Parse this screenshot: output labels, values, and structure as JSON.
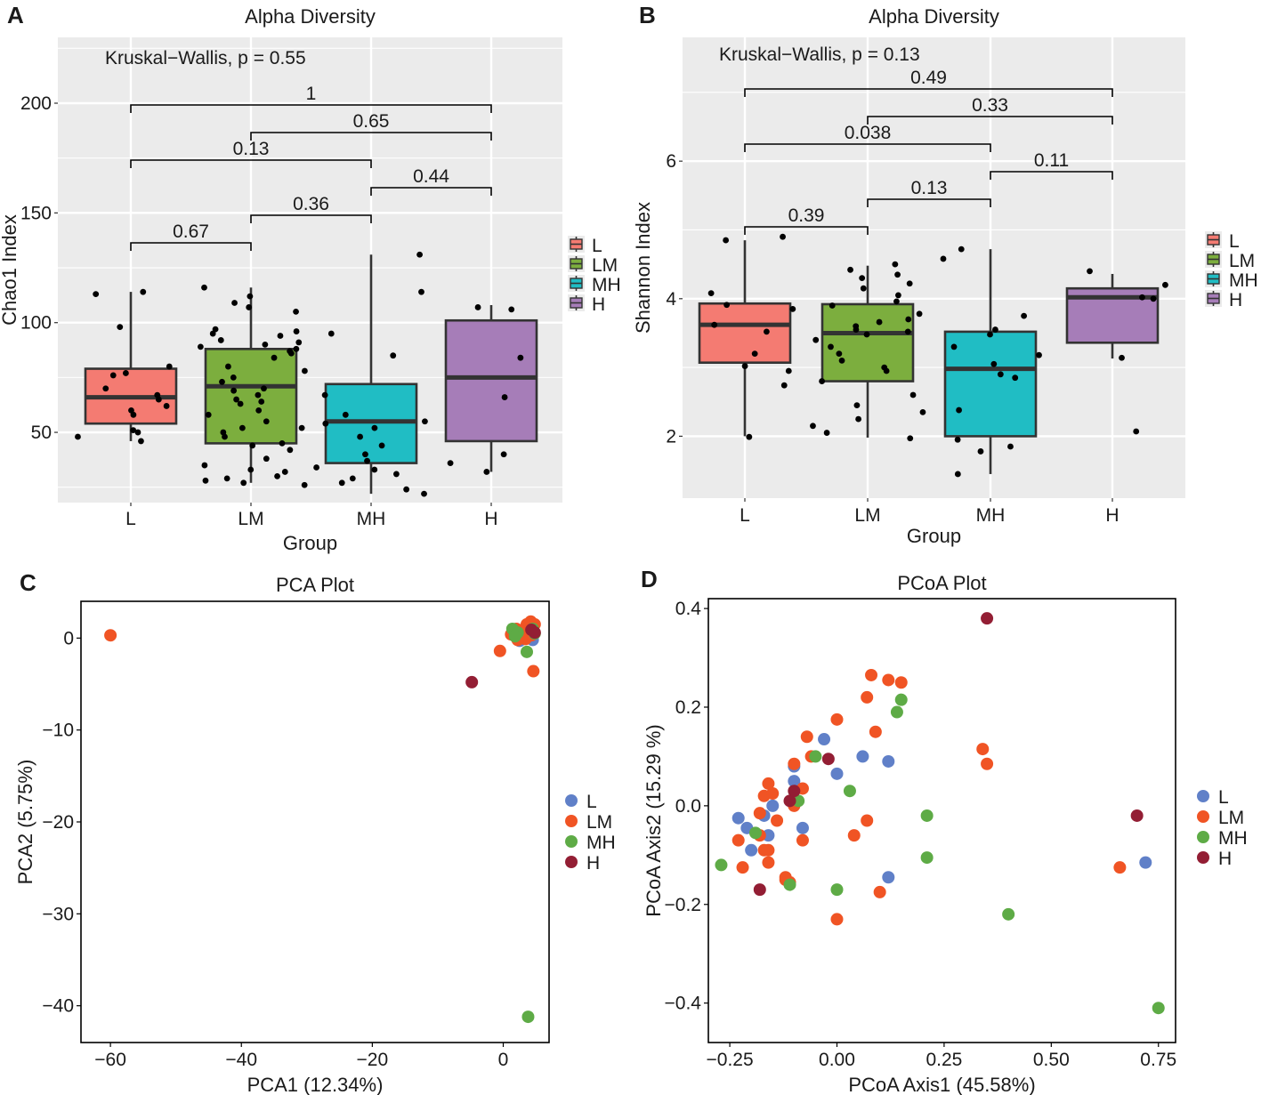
{
  "chart_data": [
    {
      "id": "A",
      "type": "box",
      "title": "Alpha Diversity",
      "xlabel": "Group",
      "ylabel": "Chao1 Index",
      "annotation": "Kruskal−Wallis, p = 0.55",
      "categories": [
        "L",
        "LM",
        "MH",
        "H"
      ],
      "ylim": [
        18,
        230
      ],
      "yticks": [
        50,
        100,
        150,
        200
      ],
      "colors": [
        "#F47B72",
        "#7CAE3E",
        "#20BDC4",
        "#A67DB8"
      ],
      "boxes": [
        {
          "group": "L",
          "whislo": 46,
          "q1": 54,
          "med": 66,
          "q3": 79,
          "whishi": 114
        },
        {
          "group": "LM",
          "whislo": 27,
          "q1": 45,
          "med": 71,
          "q3": 88,
          "whishi": 116
        },
        {
          "group": "MH",
          "whislo": 22,
          "q1": 36,
          "med": 55,
          "q3": 72,
          "whishi": 131
        },
        {
          "group": "H",
          "whislo": 32,
          "q1": 46,
          "med": 75,
          "q3": 101,
          "whishi": 108
        }
      ],
      "points": [
        [
          0,
          113
        ],
        [
          0,
          67
        ],
        [
          0,
          50
        ],
        [
          0,
          77
        ],
        [
          0,
          70
        ],
        [
          0,
          62
        ],
        [
          0,
          65
        ],
        [
          0,
          60
        ],
        [
          0,
          58
        ],
        [
          0,
          51
        ],
        [
          0,
          48
        ],
        [
          0,
          46
        ],
        [
          0,
          114
        ],
        [
          0,
          98
        ],
        [
          0,
          80
        ],
        [
          0,
          76
        ],
        [
          1,
          52
        ],
        [
          1,
          73
        ],
        [
          1,
          78
        ],
        [
          1,
          84
        ],
        [
          1,
          86
        ],
        [
          1,
          87
        ],
        [
          1,
          89
        ],
        [
          1,
          90
        ],
        [
          1,
          91
        ],
        [
          1,
          92
        ],
        [
          1,
          94
        ],
        [
          1,
          95
        ],
        [
          1,
          96
        ],
        [
          1,
          97
        ],
        [
          1,
          69
        ],
        [
          1,
          67
        ],
        [
          1,
          65
        ],
        [
          1,
          63
        ],
        [
          1,
          60
        ],
        [
          1,
          58
        ],
        [
          1,
          55
        ],
        [
          1,
          52
        ],
        [
          1,
          50
        ],
        [
          1,
          48
        ],
        [
          1,
          45
        ],
        [
          1,
          42
        ],
        [
          1,
          38
        ],
        [
          1,
          35
        ],
        [
          1,
          33
        ],
        [
          1,
          32
        ],
        [
          1,
          30
        ],
        [
          1,
          28
        ],
        [
          1,
          27
        ],
        [
          1,
          26
        ],
        [
          1,
          105
        ],
        [
          1,
          107
        ],
        [
          1,
          109
        ],
        [
          1,
          112
        ],
        [
          1,
          116
        ],
        [
          1,
          88
        ],
        [
          1,
          80
        ],
        [
          1,
          75
        ],
        [
          1,
          70
        ],
        [
          1,
          64
        ],
        [
          1,
          44
        ],
        [
          1,
          29
        ],
        [
          2,
          131
        ],
        [
          2,
          114
        ],
        [
          2,
          95
        ],
        [
          2,
          85
        ],
        [
          2,
          67
        ],
        [
          2,
          55
        ],
        [
          2,
          52
        ],
        [
          2,
          48
        ],
        [
          2,
          44
        ],
        [
          2,
          40
        ],
        [
          2,
          37
        ],
        [
          2,
          34
        ],
        [
          2,
          31
        ],
        [
          2,
          29
        ],
        [
          2,
          27
        ],
        [
          2,
          24
        ],
        [
          2,
          22
        ],
        [
          2,
          58
        ],
        [
          2,
          54
        ],
        [
          2,
          33
        ],
        [
          3,
          107
        ],
        [
          3,
          106
        ],
        [
          3,
          84
        ],
        [
          3,
          66
        ],
        [
          3,
          40
        ],
        [
          3,
          36
        ],
        [
          3,
          32
        ]
      ],
      "brackets": [
        {
          "from": "L",
          "to": "H",
          "label": "1"
        },
        {
          "from": "LM",
          "to": "H",
          "label": "0.65"
        },
        {
          "from": "L",
          "to": "MH",
          "label": "0.13"
        },
        {
          "from": "MH",
          "to": "H",
          "label": "0.44"
        },
        {
          "from": "LM",
          "to": "MH",
          "label": "0.36"
        },
        {
          "from": "L",
          "to": "LM",
          "label": "0.67"
        }
      ],
      "legend": [
        "L",
        "LM",
        "MH",
        "H"
      ]
    },
    {
      "id": "B",
      "type": "box",
      "title": "Alpha Diversity",
      "xlabel": "Group",
      "ylabel": "Shannon Index",
      "annotation": "Kruskal−Wallis, p = 0.13",
      "categories": [
        "L",
        "LM",
        "MH",
        "H"
      ],
      "ylim": [
        1.1,
        7.8
      ],
      "yticks": [
        2,
        4,
        6
      ],
      "colors": [
        "#F47B72",
        "#7CAE3E",
        "#20BDC4",
        "#A67DB8"
      ],
      "boxes": [
        {
          "group": "L",
          "whislo": 2.0,
          "q1": 3.07,
          "med": 3.62,
          "q3": 3.93,
          "whishi": 4.85
        },
        {
          "group": "LM",
          "whislo": 1.98,
          "q1": 2.8,
          "med": 3.5,
          "q3": 3.92,
          "whishi": 4.48
        },
        {
          "group": "MH",
          "whislo": 1.45,
          "q1": 2.0,
          "med": 2.98,
          "q3": 3.52,
          "whishi": 4.72
        },
        {
          "group": "H",
          "whislo": 3.13,
          "q1": 3.36,
          "med": 4.02,
          "q3": 4.15,
          "whishi": 4.36
        }
      ],
      "points": [
        [
          0,
          4.85
        ],
        [
          0,
          4.9
        ],
        [
          0,
          4.08
        ],
        [
          0,
          3.91
        ],
        [
          0,
          3.85
        ],
        [
          0,
          3.62
        ],
        [
          0,
          3.52
        ],
        [
          0,
          3.2
        ],
        [
          0,
          3.02
        ],
        [
          0,
          2.95
        ],
        [
          0,
          2.74
        ],
        [
          0,
          1.99
        ],
        [
          1,
          4.5
        ],
        [
          1,
          4.42
        ],
        [
          1,
          4.35
        ],
        [
          1,
          4.3
        ],
        [
          1,
          4.22
        ],
        [
          1,
          4.15
        ],
        [
          1,
          4.05
        ],
        [
          1,
          3.96
        ],
        [
          1,
          3.9
        ],
        [
          1,
          3.78
        ],
        [
          1,
          3.7
        ],
        [
          1,
          3.66
        ],
        [
          1,
          3.6
        ],
        [
          1,
          3.55
        ],
        [
          1,
          3.52
        ],
        [
          1,
          3.48
        ],
        [
          1,
          3.4
        ],
        [
          1,
          3.3
        ],
        [
          1,
          3.1
        ],
        [
          1,
          2.95
        ],
        [
          1,
          2.8
        ],
        [
          1,
          2.6
        ],
        [
          1,
          2.45
        ],
        [
          1,
          2.35
        ],
        [
          1,
          2.25
        ],
        [
          1,
          2.15
        ],
        [
          1,
          2.05
        ],
        [
          1,
          1.97
        ],
        [
          1,
          3.0
        ],
        [
          1,
          3.2
        ],
        [
          2,
          4.72
        ],
        [
          2,
          4.58
        ],
        [
          2,
          3.75
        ],
        [
          2,
          3.55
        ],
        [
          2,
          3.48
        ],
        [
          2,
          3.3
        ],
        [
          2,
          3.18
        ],
        [
          2,
          3.05
        ],
        [
          2,
          2.9
        ],
        [
          2,
          2.85
        ],
        [
          2,
          2.38
        ],
        [
          2,
          1.95
        ],
        [
          2,
          1.85
        ],
        [
          2,
          1.78
        ],
        [
          2,
          1.45
        ],
        [
          3,
          4.4
        ],
        [
          3,
          4.2
        ],
        [
          3,
          4.02
        ],
        [
          3,
          4.0
        ],
        [
          3,
          3.14
        ],
        [
          3,
          2.07
        ]
      ],
      "brackets": [
        {
          "from": "L",
          "to": "H",
          "label": "0.49"
        },
        {
          "from": "LM",
          "to": "H",
          "label": "0.33"
        },
        {
          "from": "L",
          "to": "MH",
          "label": "0.038"
        },
        {
          "from": "MH",
          "to": "H",
          "label": "0.11"
        },
        {
          "from": "LM",
          "to": "MH",
          "label": "0.13"
        },
        {
          "from": "L",
          "to": "LM",
          "label": "0.39"
        }
      ],
      "legend": [
        "L",
        "LM",
        "MH",
        "H"
      ]
    },
    {
      "id": "C",
      "type": "scatter",
      "title": "PCA Plot",
      "xlabel": "PCA1 (12.34%)",
      "ylabel": "PCA2 (5.75%)",
      "xlim": [
        -64.5,
        7
      ],
      "ylim": [
        -44,
        4
      ],
      "xticks": [
        -60,
        -40,
        -20,
        0
      ],
      "yticks": [
        0,
        -10,
        -20,
        -30,
        -40
      ],
      "legend": [
        {
          "label": "L",
          "color": "#6080C8"
        },
        {
          "label": "LM",
          "color": "#F05424"
        },
        {
          "label": "MH",
          "color": "#5EAB46"
        },
        {
          "label": "H",
          "color": "#931E34"
        }
      ],
      "series": [
        {
          "name": "L",
          "points": [
            [
              2.5,
              -0.3
            ],
            [
              3.3,
              1.0
            ],
            [
              4.0,
              1.2
            ],
            [
              3.8,
              0.5
            ],
            [
              2.9,
              0.0
            ],
            [
              4.5,
              -0.2
            ]
          ]
        },
        {
          "name": "LM",
          "points": [
            [
              -60,
              0.3
            ],
            [
              -0.5,
              -1.4
            ],
            [
              1.2,
              0.4
            ],
            [
              2.0,
              1.0
            ],
            [
              3.0,
              0.8
            ],
            [
              3.6,
              1.5
            ],
            [
              4.2,
              1.8
            ],
            [
              4.8,
              1.5
            ],
            [
              3.4,
              -0.1
            ],
            [
              2.2,
              -0.2
            ],
            [
              4.3,
              0.3
            ],
            [
              3.0,
              0.4
            ],
            [
              2.6,
              0.8
            ],
            [
              4.6,
              -3.6
            ]
          ]
        },
        {
          "name": "MH",
          "points": [
            [
              1.4,
              1.0
            ],
            [
              2.2,
              0.6
            ],
            [
              3.6,
              -1.5
            ],
            [
              4.5,
              1.0
            ],
            [
              4.8,
              0.5
            ],
            [
              3.8,
              -41.2
            ],
            [
              1.8,
              0.2
            ]
          ]
        },
        {
          "name": "H",
          "points": [
            [
              -4.8,
              -4.8
            ],
            [
              4.8,
              0.6
            ],
            [
              4.3,
              0.9
            ]
          ]
        }
      ]
    },
    {
      "id": "D",
      "type": "scatter",
      "title": "PCoA Plot",
      "xlabel": "PCoA Axis1 (45.58%)",
      "ylabel": "PCoA Axis2 (15.29 %)",
      "xlim": [
        -0.3,
        0.79
      ],
      "ylim": [
        -0.48,
        0.42
      ],
      "xticks": [
        -0.25,
        0.0,
        0.25,
        0.5,
        0.75
      ],
      "xtick_labels": [
        "-0.25",
        "0.00",
        "0.25",
        "0.50",
        "0.75"
      ],
      "yticks": [
        0.4,
        0.2,
        0.0,
        -0.2,
        -0.4
      ],
      "ytick_labels": [
        "0.4",
        "0.2",
        "0.0",
        "-0.2",
        "-0.4"
      ],
      "legend": [
        {
          "label": "L",
          "color": "#6080C8"
        },
        {
          "label": "LM",
          "color": "#F05424"
        },
        {
          "label": "MH",
          "color": "#5EAB46"
        },
        {
          "label": "H",
          "color": "#931E34"
        }
      ],
      "series": [
        {
          "name": "L",
          "points": [
            [
              -0.23,
              -0.025
            ],
            [
              -0.21,
              -0.045
            ],
            [
              -0.2,
              -0.09
            ],
            [
              -0.16,
              -0.06
            ],
            [
              -0.15,
              0.0
            ],
            [
              -0.1,
              0.08
            ],
            [
              -0.1,
              0.05
            ],
            [
              -0.08,
              -0.045
            ],
            [
              -0.03,
              0.135
            ],
            [
              0.0,
              0.065
            ],
            [
              0.06,
              0.1
            ],
            [
              0.12,
              0.09
            ],
            [
              0.12,
              -0.145
            ],
            [
              0.72,
              -0.115
            ],
            [
              -0.17,
              -0.02
            ]
          ]
        },
        {
          "name": "LM",
          "points": [
            [
              -0.23,
              -0.07
            ],
            [
              -0.22,
              -0.125
            ],
            [
              -0.18,
              -0.06
            ],
            [
              -0.18,
              -0.015
            ],
            [
              -0.17,
              0.02
            ],
            [
              -0.16,
              0.045
            ],
            [
              -0.15,
              0.025
            ],
            [
              -0.14,
              -0.03
            ],
            [
              -0.16,
              -0.09
            ],
            [
              -0.16,
              -0.115
            ],
            [
              -0.12,
              -0.15
            ],
            [
              -0.12,
              -0.145
            ],
            [
              -0.11,
              -0.155
            ],
            [
              -0.1,
              0.085
            ],
            [
              -0.1,
              0.0
            ],
            [
              -0.08,
              -0.07
            ],
            [
              -0.08,
              0.035
            ],
            [
              -0.07,
              0.14
            ],
            [
              -0.06,
              0.1
            ],
            [
              0.0,
              0.175
            ],
            [
              0.0,
              -0.23
            ],
            [
              0.04,
              -0.06
            ],
            [
              0.07,
              -0.03
            ],
            [
              0.07,
              0.22
            ],
            [
              0.08,
              0.265
            ],
            [
              0.09,
              0.15
            ],
            [
              0.1,
              -0.175
            ],
            [
              0.12,
              0.255
            ],
            [
              0.15,
              0.25
            ],
            [
              0.34,
              0.115
            ],
            [
              0.35,
              0.085
            ],
            [
              0.66,
              -0.125
            ],
            [
              -0.17,
              -0.09
            ]
          ]
        },
        {
          "name": "MH",
          "points": [
            [
              -0.27,
              -0.12
            ],
            [
              -0.19,
              -0.055
            ],
            [
              -0.11,
              -0.16
            ],
            [
              -0.09,
              0.01
            ],
            [
              -0.05,
              0.1
            ],
            [
              0.03,
              0.03
            ],
            [
              0.0,
              -0.17
            ],
            [
              0.14,
              0.19
            ],
            [
              0.15,
              0.215
            ],
            [
              0.21,
              -0.02
            ],
            [
              0.21,
              -0.105
            ],
            [
              0.4,
              -0.22
            ],
            [
              0.75,
              -0.41
            ]
          ]
        },
        {
          "name": "H",
          "points": [
            [
              -0.18,
              -0.17
            ],
            [
              -0.11,
              0.01
            ],
            [
              -0.1,
              0.03
            ],
            [
              -0.02,
              0.095
            ],
            [
              0.35,
              0.38
            ],
            [
              0.7,
              -0.02
            ]
          ]
        }
      ]
    }
  ]
}
